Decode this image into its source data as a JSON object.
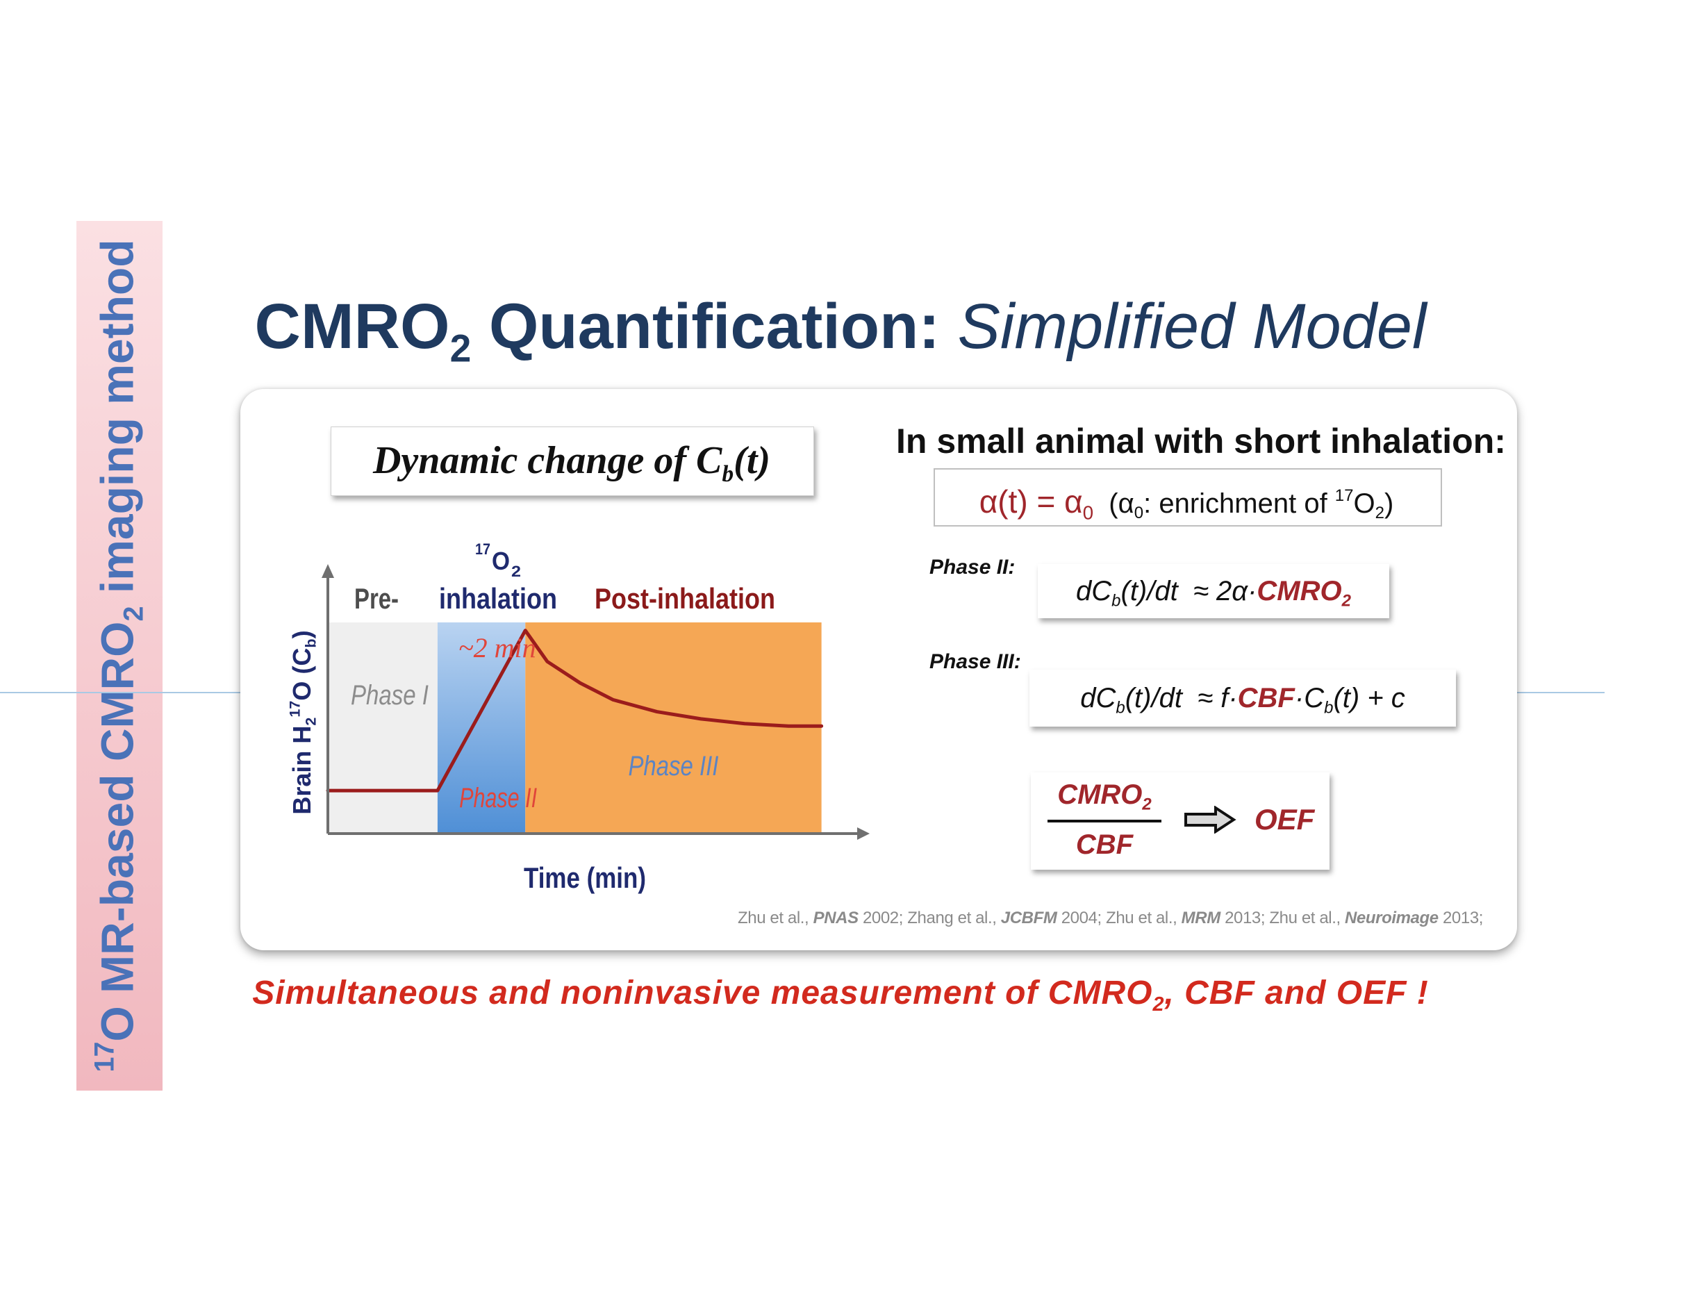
{
  "side_banner": {
    "sup": "17",
    "text": "O MR-based CMRO",
    "sub": "2",
    "text2": " imaging method"
  },
  "title": {
    "bold": "CMRO",
    "bold_sub": "2",
    "bold2": " Quantification:",
    "italic": " Simplified Model"
  },
  "dynamic_box": {
    "text": "Dynamic change of C",
    "sub": "b",
    "text2": "(t)"
  },
  "condition": {
    "heading": "In small animal with short inhalation:"
  },
  "alpha": {
    "lhs": "α(t) = α",
    "lhs_sub": "0",
    "paren_open": "  (α",
    "paren_sub": "0",
    "paren_text": ": enrichment of ",
    "sup": "17",
    "o": "O",
    "o_sub": "2",
    "close": ")"
  },
  "phase2": {
    "label": "Phase II:",
    "eq_a": "dC",
    "eq_sub": "b",
    "eq_b": "(t)/dt  ≈ 2α·",
    "eq_red": "CMRO",
    "eq_red_sub": "2"
  },
  "phase3": {
    "label": "Phase III:",
    "eq_a": "dC",
    "eq_sub": "b",
    "eq_b": "(t)/dt  ≈ f·",
    "eq_red": "CBF",
    "eq_c": "·C",
    "eq_sub2": "b",
    "eq_d": "(t) + c"
  },
  "ratio": {
    "numerator": "CMRO",
    "numerator_sub": "2",
    "denominator": "CBF",
    "result": "OEF"
  },
  "references": [
    {
      "author": "Zhu et al., ",
      "journal": "PNAS",
      "year": " 2002; "
    },
    {
      "author": "Zhang et al., ",
      "journal": "JCBFM",
      "year": " 2004; "
    },
    {
      "author": "Zhu et al., ",
      "journal": "MRM",
      "year": " 2013; "
    },
    {
      "author": "Zhu et al., ",
      "journal": "Neuroimage",
      "year": " 2013;"
    }
  ],
  "bottom_note": {
    "text": "Simultaneous and noninvasive measurement of CMRO",
    "sub": "2",
    "text2": ", CBF and OEF !"
  },
  "chart_data": {
    "type": "line",
    "title": "",
    "xlabel": "Time (min)",
    "ylabel": "Brain H2 17O (Cb)",
    "ylabel_parts": {
      "a": "Brain H",
      "a_sub": "2",
      "b_sup": "17",
      "b": "O (C",
      "b_sub": "b",
      "c": ")"
    },
    "header_pre": "Pre-",
    "header_inhal_sup": "17",
    "header_inhal_o": "O",
    "header_inhal_sub": "2",
    "header_inhal": "inhalation",
    "header_post": "Post-inhalation",
    "duration_note": "~2 min",
    "phases": [
      {
        "name": "Phase I",
        "x0": 0,
        "x1": 1,
        "color": "#efefef",
        "label_color": "#8c8c8c"
      },
      {
        "name": "Phase II",
        "x0": 1,
        "x1": 1.8,
        "color": "#4f8fd6",
        "label_color": "#e0453a"
      },
      {
        "name": "Phase III",
        "x0": 1.8,
        "x1": 4.5,
        "color": "#f5a755",
        "label_color": "#5b84c4"
      }
    ],
    "xlim": [
      0,
      4.8
    ],
    "ylim": [
      0,
      1
    ],
    "series": [
      {
        "name": "Cb(t)",
        "color": "#9b1c1c",
        "x": [
          0,
          1.0,
          1.8,
          2.0,
          2.3,
          2.6,
          3.0,
          3.4,
          3.8,
          4.2,
          4.5
        ],
        "y": [
          0.18,
          0.18,
          0.85,
          0.72,
          0.63,
          0.56,
          0.51,
          0.48,
          0.46,
          0.45,
          0.45
        ]
      }
    ]
  }
}
